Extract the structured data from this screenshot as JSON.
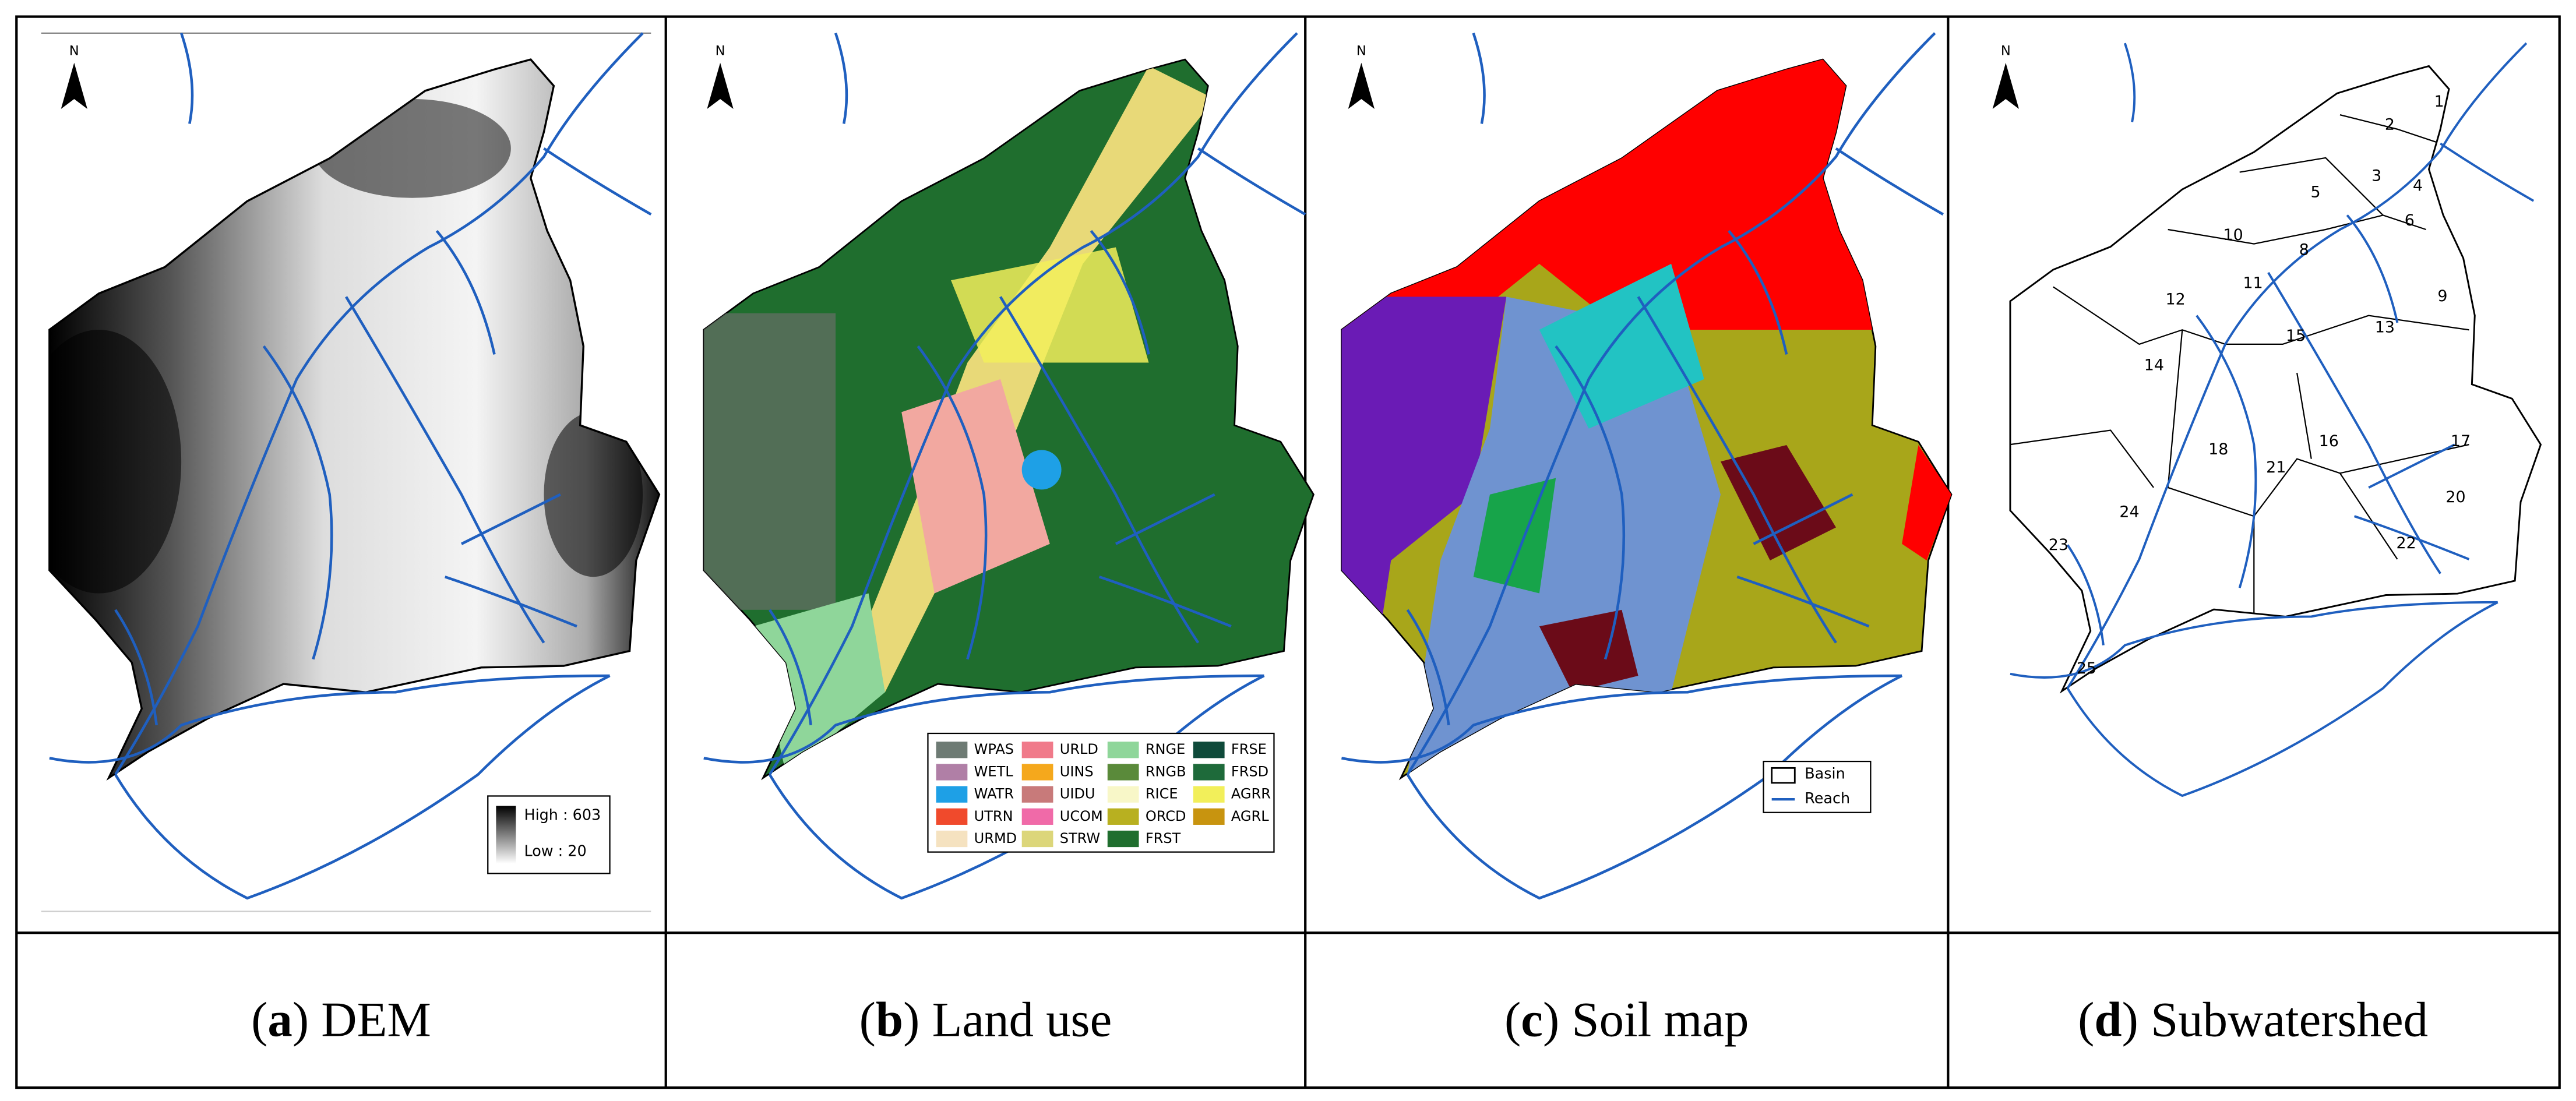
{
  "panels": [
    {
      "north": "N",
      "caption": {
        "parts": [
          "(",
          "a",
          ") DEM"
        ]
      },
      "legend": {
        "high": "High : 603",
        "low": "Low : 20"
      }
    },
    {
      "north": "N",
      "caption": {
        "parts": [
          "(",
          "b",
          ") Land use"
        ]
      },
      "legend": {
        "items": [
          {
            "code": "WPAS",
            "color": "#6e7b74"
          },
          {
            "code": "WETL",
            "color": "#b07fa6"
          },
          {
            "code": "WATR",
            "color": "#1ea0e6"
          },
          {
            "code": "UTRN",
            "color": "#f04a2c"
          },
          {
            "code": "URMD",
            "color": "#f5e2c0"
          },
          {
            "code": "URLD",
            "color": "#f07a8a"
          },
          {
            "code": "UINS",
            "color": "#f5a81c"
          },
          {
            "code": "UIDU",
            "color": "#c87a7a"
          },
          {
            "code": "UCOM",
            "color": "#f06aa8"
          },
          {
            "code": "STRW",
            "color": "#dcd67a"
          },
          {
            "code": "RNGE",
            "color": "#8fd69a"
          },
          {
            "code": "RNGB",
            "color": "#5a8a3a"
          },
          {
            "code": "RICE",
            "color": "#f8f7c8"
          },
          {
            "code": "ORCD",
            "color": "#b8b020"
          },
          {
            "code": "FRST",
            "color": "#1f6e2e"
          },
          {
            "code": "FRSE",
            "color": "#0f4a3a"
          },
          {
            "code": "FRSD",
            "color": "#1e6a3a"
          },
          {
            "code": "AGRR",
            "color": "#f2ef5a"
          },
          {
            "code": "AGRL",
            "color": "#c8940f"
          }
        ]
      }
    },
    {
      "north": "N",
      "caption": {
        "parts": [
          "(",
          "c",
          ") Soil map"
        ]
      },
      "legend": {
        "basin": "Basin",
        "reach": "Reach"
      }
    },
    {
      "north": "N",
      "caption": {
        "parts": [
          "(",
          "d",
          ") Subwatershed"
        ]
      },
      "subbasins": [
        "1",
        "2",
        "3",
        "4",
        "5",
        "6",
        "8",
        "9",
        "10",
        "11",
        "12",
        "13",
        "14",
        "15",
        "16",
        "17",
        "18",
        "20",
        "21",
        "22",
        "23",
        "24",
        "25"
      ]
    }
  ]
}
